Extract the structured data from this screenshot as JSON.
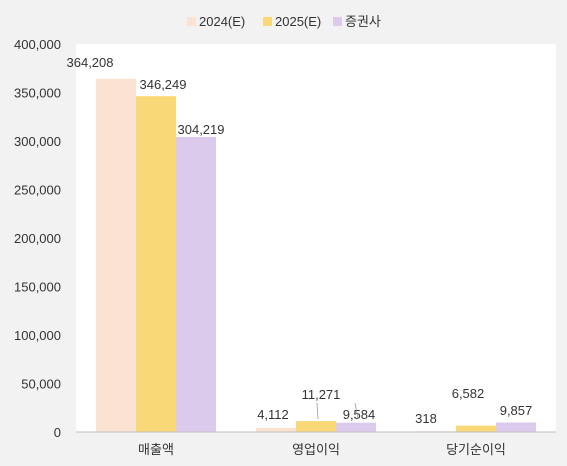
{
  "chart_data": {
    "type": "bar",
    "categories": [
      "매출액",
      "영업이익",
      "당기순이익"
    ],
    "series": [
      {
        "name": "2024(E)",
        "color": "#fbe3d4",
        "values": [
          364208,
          4112,
          318
        ],
        "labels": [
          "364,208",
          "4,112",
          "318"
        ]
      },
      {
        "name": "2025(E)",
        "color": "#f9d977",
        "values": [
          346249,
          11271,
          6582
        ],
        "labels": [
          "346,249",
          "11,271",
          "6,582"
        ]
      },
      {
        "name": "증권사",
        "color": "#dccaed",
        "values": [
          304219,
          9584,
          9857
        ],
        "labels": [
          "304,219",
          "9,584",
          "9,857"
        ]
      }
    ],
    "ylim": [
      0,
      400000
    ],
    "yticks": [
      0,
      50000,
      100000,
      150000,
      200000,
      250000,
      300000,
      350000,
      400000
    ],
    "ytick_labels": [
      "0",
      "50,000",
      "100,000",
      "150,000",
      "200,000",
      "250,000",
      "300,000",
      "350,000",
      "400,000"
    ],
    "legend_position": "top-center",
    "grid": false,
    "colors": {
      "background": "#f2f2f2",
      "plot_background": "#ffffff",
      "axis": "#bfbfbf",
      "text": "#333333",
      "leader": "#999999"
    }
  }
}
